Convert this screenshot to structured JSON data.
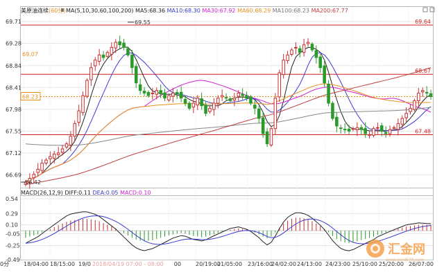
{
  "header": {
    "instrument": "美原油连续",
    "period": "(60分)",
    "ma_label": "MA(5,10,30,60,100,200)",
    "ma_values": [
      {
        "text": "MA5:68.36",
        "color": "#222222"
      },
      {
        "text": "MA10:68.30",
        "color": "#3a3ad0"
      },
      {
        "text": "MA30:67.92",
        "color": "#d020d0"
      },
      {
        "text": "MA60:68.29",
        "color": "#e8901e"
      },
      {
        "text": "MA100:68.23",
        "color": "#777777"
      },
      {
        "text": "MA200:67.77",
        "color": "#c04040"
      }
    ],
    "macd_label": "MACD(26,12,9)",
    "macd_values": [
      {
        "text": "DIFF:0.11",
        "color": "#222222"
      },
      {
        "text": "DEA:0.05",
        "color": "#3a3ad0"
      },
      {
        "text": "MACD:0.10",
        "color": "#d020d0"
      }
    ]
  },
  "price_axis": {
    "ticks": [
      "69.71",
      "69.28",
      "68.84",
      "68.41",
      "67.98",
      "67.55",
      "67.12",
      "66.69"
    ],
    "tick_values": [
      69.71,
      69.28,
      68.84,
      68.41,
      67.98,
      67.55,
      67.12,
      66.69
    ],
    "left_overlays": [
      {
        "text": "69.07",
        "value": 69.07,
        "color": "#e8901e"
      },
      {
        "text": "68.23",
        "value": 68.23,
        "color": "#e8901e"
      }
    ]
  },
  "macd_axis": {
    "ticks": [
      "0.54",
      "0.29",
      "0.10",
      "-0.05",
      "-0.25",
      "-0.49"
    ],
    "tick_values": [
      0.54,
      0.29,
      0.1,
      -0.05,
      -0.25,
      -0.49
    ]
  },
  "x_axis": {
    "left_label": "0分",
    "labels": [
      "18/04:00",
      "18/15:00",
      "19/01:",
      "9:00",
      "20/19:00",
      "21/05:00",
      "23/16:00",
      "24/02:00",
      "24/13:00",
      "24/23:00",
      "25/10:00",
      "25/20:00",
      "26/07:00"
    ],
    "crosshair_label": "2018/04/19 07:00 - 08:00"
  },
  "annotations": {
    "high": "69.55",
    "low": "66.42",
    "current": "68.23"
  },
  "hlines": [
    {
      "text": "69.64",
      "value": 69.64,
      "color": "#d22020"
    },
    {
      "text": "68.67",
      "value": 68.67,
      "color": "#d22020"
    },
    {
      "text": "67.48",
      "value": 67.48,
      "color": "#d22020"
    }
  ],
  "watermark": {
    "brand": "汇金网",
    "site": "www.gold678.com"
  },
  "colors": {
    "up": "#c83030",
    "down": "#2a9a2a",
    "doji": "#555555",
    "grid": "#e6e6e6",
    "hline": "#d22020",
    "current": "#e8901e"
  },
  "chart_data": [
    {
      "type": "candlestick",
      "title": "美原油连续 (60分)",
      "ylim": [
        66.45,
        69.71
      ],
      "hlines": [
        69.64,
        68.67,
        67.48
      ],
      "current_price": 68.23,
      "closes": [
        66.55,
        66.62,
        66.7,
        66.8,
        66.92,
        66.98,
        67.05,
        67.1,
        67.12,
        67.2,
        67.3,
        67.45,
        67.7,
        67.95,
        68.25,
        68.55,
        68.8,
        68.95,
        69.05,
        69.0,
        69.1,
        69.2,
        69.3,
        69.25,
        69.2,
        69.05,
        68.8,
        68.5,
        68.35,
        68.3,
        68.25,
        68.3,
        68.35,
        68.28,
        68.2,
        68.25,
        68.3,
        68.28,
        68.2,
        68.1,
        68.0,
        68.1,
        68.2,
        68.05,
        67.9,
        68.0,
        68.1,
        68.2,
        68.25,
        68.2,
        68.15,
        68.2,
        68.3,
        68.25,
        68.2,
        68.1,
        68.0,
        67.8,
        67.5,
        67.3,
        67.6,
        68.2,
        68.7,
        68.95,
        69.05,
        69.15,
        69.2,
        69.1,
        69.25,
        69.3,
        69.15,
        69.0,
        68.8,
        68.5,
        68.1,
        67.8,
        67.65,
        67.6,
        67.58,
        67.55,
        67.6,
        67.62,
        67.58,
        67.5,
        67.48,
        67.6,
        67.62,
        67.55,
        67.5,
        67.58,
        67.62,
        67.7,
        67.8,
        67.9,
        68.0,
        68.15,
        68.3,
        68.35,
        68.3,
        68.23
      ],
      "ma_last": {
        "MA5": 68.36,
        "MA10": 68.3,
        "MA30": 67.92,
        "MA60": 68.29,
        "MA100": 68.23,
        "MA200": 67.77
      }
    },
    {
      "type": "bar",
      "title": "MACD(26,12,9)",
      "ylim": [
        -0.49,
        0.54
      ],
      "macd": [
        -0.12,
        -0.1,
        -0.08,
        -0.06,
        -0.03,
        0.0,
        0.03,
        0.06,
        0.09,
        0.12,
        0.15,
        0.17,
        0.18,
        0.19,
        0.2,
        0.2,
        0.19,
        0.18,
        0.16,
        0.13,
        0.1,
        0.07,
        0.04,
        0.0,
        -0.04,
        -0.08,
        -0.12,
        -0.15,
        -0.17,
        -0.18,
        -0.17,
        -0.16,
        -0.14,
        -0.12,
        -0.1,
        -0.08,
        -0.06,
        -0.05,
        -0.04,
        -0.05,
        -0.07,
        -0.09,
        -0.1,
        -0.11,
        -0.1,
        -0.08,
        -0.06,
        -0.04,
        -0.02,
        0.0,
        0.02,
        0.03,
        0.04,
        0.03,
        0.02,
        0.0,
        -0.03,
        -0.06,
        -0.1,
        -0.13,
        -0.1,
        -0.03,
        0.05,
        0.12,
        0.17,
        0.2,
        0.22,
        0.22,
        0.21,
        0.19,
        0.16,
        0.12,
        0.08,
        0.03,
        -0.03,
        -0.09,
        -0.14,
        -0.18,
        -0.2,
        -0.21,
        -0.2,
        -0.18,
        -0.16,
        -0.14,
        -0.12,
        -0.1,
        -0.07,
        -0.05,
        -0.03,
        -0.01,
        0.01,
        0.03,
        0.05,
        0.07,
        0.08,
        0.09,
        0.1,
        0.1,
        0.1,
        0.1
      ],
      "diff_last": 0.11,
      "dea_last": 0.05,
      "macd_last": 0.1
    }
  ]
}
